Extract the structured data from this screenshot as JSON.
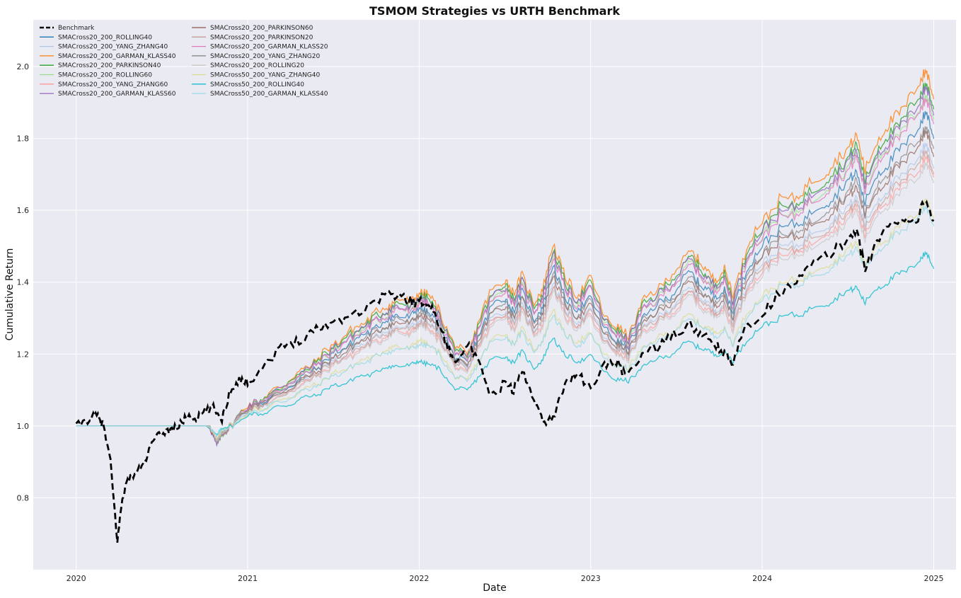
{
  "chart_data": {
    "type": "line",
    "title": "TSMOM Strategies vs URTH Benchmark",
    "xlabel": "Date",
    "ylabel": "Cumulative Return",
    "xlim": [
      2019.75,
      2025.13
    ],
    "ylim": [
      0.6,
      2.13
    ],
    "x_ticks": [
      2020,
      2021,
      2022,
      2023,
      2024,
      2025
    ],
    "x_tick_labels": [
      "2020",
      "2021",
      "2022",
      "2023",
      "2024",
      "2025"
    ],
    "y_ticks": [
      0.8,
      1.0,
      1.2,
      1.4,
      1.6,
      1.8,
      2.0
    ],
    "y_tick_labels": [
      "0.8",
      "1.0",
      "1.2",
      "1.4",
      "1.6",
      "1.8",
      "2.0"
    ],
    "grid": true,
    "legend_position": "upper-left",
    "legend_columns": 2,
    "benchmark": {
      "name": "Benchmark",
      "color": "#000000",
      "style": "dashed",
      "x": [
        2020.0,
        2020.08,
        2020.12,
        2020.16,
        2020.2,
        2020.24,
        2020.27,
        2020.3,
        2020.35,
        2020.4,
        2020.45,
        2020.5,
        2020.55,
        2020.6,
        2020.65,
        2020.7,
        2020.75,
        2020.8,
        2020.85,
        2020.9,
        2020.95,
        2021.0,
        2021.1,
        2021.2,
        2021.3,
        2021.4,
        2021.5,
        2021.6,
        2021.7,
        2021.8,
        2021.87,
        2021.95,
        2022.0,
        2022.05,
        2022.1,
        2022.15,
        2022.2,
        2022.28,
        2022.35,
        2022.42,
        2022.5,
        2022.55,
        2022.6,
        2022.67,
        2022.72,
        2022.78,
        2022.85,
        2022.92,
        2023.0,
        2023.08,
        2023.15,
        2023.2,
        2023.3,
        2023.4,
        2023.5,
        2023.58,
        2023.65,
        2023.72,
        2023.78,
        2023.83,
        2023.9,
        2024.0,
        2024.1,
        2024.2,
        2024.3,
        2024.4,
        2024.5,
        2024.55,
        2024.6,
        2024.67,
        2024.75,
        2024.83,
        2024.9,
        2024.95,
        2025.0
      ],
      "y": [
        1.0,
        1.02,
        1.03,
        1.0,
        0.9,
        0.68,
        0.8,
        0.85,
        0.87,
        0.9,
        0.96,
        0.98,
        0.99,
        1.0,
        1.03,
        1.02,
        1.04,
        1.05,
        1.02,
        1.1,
        1.13,
        1.12,
        1.17,
        1.22,
        1.24,
        1.27,
        1.29,
        1.31,
        1.33,
        1.37,
        1.36,
        1.35,
        1.34,
        1.35,
        1.3,
        1.24,
        1.18,
        1.23,
        1.17,
        1.08,
        1.12,
        1.1,
        1.15,
        1.08,
        1.01,
        1.02,
        1.12,
        1.15,
        1.1,
        1.17,
        1.18,
        1.14,
        1.2,
        1.22,
        1.26,
        1.28,
        1.25,
        1.23,
        1.2,
        1.17,
        1.28,
        1.31,
        1.37,
        1.41,
        1.45,
        1.48,
        1.52,
        1.55,
        1.43,
        1.52,
        1.56,
        1.58,
        1.57,
        1.63,
        1.57
      ]
    },
    "strategy_x": [
      2020.0,
      2020.2,
      2020.4,
      2020.6,
      2020.78,
      2020.82,
      2020.85,
      2020.9,
      2021.0,
      2021.1,
      2021.2,
      2021.3,
      2021.4,
      2021.5,
      2021.6,
      2021.7,
      2021.8,
      2021.87,
      2021.95,
      2022.0,
      2022.05,
      2022.12,
      2022.2,
      2022.28,
      2022.35,
      2022.42,
      2022.5,
      2022.55,
      2022.6,
      2022.67,
      2022.72,
      2022.78,
      2022.85,
      2022.92,
      2023.0,
      2023.08,
      2023.15,
      2023.22,
      2023.3,
      2023.4,
      2023.5,
      2023.58,
      2023.65,
      2023.72,
      2023.78,
      2023.83,
      2023.92,
      2024.0,
      2024.1,
      2024.2,
      2024.3,
      2024.4,
      2024.5,
      2024.55,
      2024.6,
      2024.67,
      2024.75,
      2024.83,
      2024.92,
      2024.96,
      2025.0
    ],
    "strategy_base": [
      1.0,
      1.0,
      1.0,
      1.0,
      1.0,
      0.95,
      0.98,
      1.0,
      1.05,
      1.07,
      1.1,
      1.13,
      1.16,
      1.2,
      1.23,
      1.26,
      1.29,
      1.31,
      1.3,
      1.33,
      1.32,
      1.28,
      1.2,
      1.17,
      1.26,
      1.33,
      1.36,
      1.32,
      1.37,
      1.3,
      1.33,
      1.45,
      1.36,
      1.32,
      1.36,
      1.27,
      1.24,
      1.22,
      1.3,
      1.34,
      1.38,
      1.43,
      1.39,
      1.36,
      1.38,
      1.32,
      1.45,
      1.5,
      1.55,
      1.56,
      1.6,
      1.63,
      1.68,
      1.71,
      1.62,
      1.7,
      1.74,
      1.78,
      1.84,
      1.87,
      1.8
    ],
    "series": [
      {
        "name": "SMACross20_200_ROLLING40",
        "color": "#1f77b4",
        "opacity": 0.75,
        "scale": 1.0
      },
      {
        "name": "SMACross20_200_YANG_ZHANG40",
        "color": "#aec7e8",
        "opacity": 0.75,
        "scale": 0.9
      },
      {
        "name": "SMACross20_200_GARMAN_KLASS40",
        "color": "#ff7f0e",
        "opacity": 0.8,
        "scale": 1.14
      },
      {
        "name": "SMACross20_200_PARKINSON40",
        "color": "#2ca02c",
        "opacity": 0.8,
        "scale": 1.1
      },
      {
        "name": "SMACross20_200_ROLLING60",
        "color": "#98df8a",
        "opacity": 0.75,
        "scale": 1.06
      },
      {
        "name": "SMACross20_200_YANG_ZHANG60",
        "color": "#ff9896",
        "opacity": 0.7,
        "scale": 0.86
      },
      {
        "name": "SMACross20_200_GARMAN_KLASS60",
        "color": "#9467bd",
        "opacity": 0.8,
        "scale": 1.08
      },
      {
        "name": "SMACross20_200_PARKINSON60",
        "color": "#8c564b",
        "opacity": 0.7,
        "scale": 0.94
      },
      {
        "name": "SMACross20_200_PARKINSON20",
        "color": "#c49c94",
        "opacity": 0.7,
        "scale": 0.88
      },
      {
        "name": "SMACross20_200_GARMAN_KLASS20",
        "color": "#e377c2",
        "opacity": 0.8,
        "scale": 1.05
      },
      {
        "name": "SMACross20_200_YANG_ZHANG20",
        "color": "#7f7f7f",
        "opacity": 0.7,
        "scale": 0.96
      },
      {
        "name": "SMACross20_200_ROLLING20",
        "color": "#c7c7c7",
        "opacity": 0.75,
        "scale": 0.84
      },
      {
        "name": "SMACross50_200_YANG_ZHANG40",
        "color": "#dbdb8d",
        "opacity": 0.75,
        "scale": 0.72
      },
      {
        "name": "SMACross50_200_ROLLING40",
        "color": "#17becf",
        "opacity": 0.85,
        "scale": 0.55
      },
      {
        "name": "SMACross50_200_GARMAN_KLASS40",
        "color": "#9edae5",
        "opacity": 0.85,
        "scale": 0.7
      }
    ]
  }
}
